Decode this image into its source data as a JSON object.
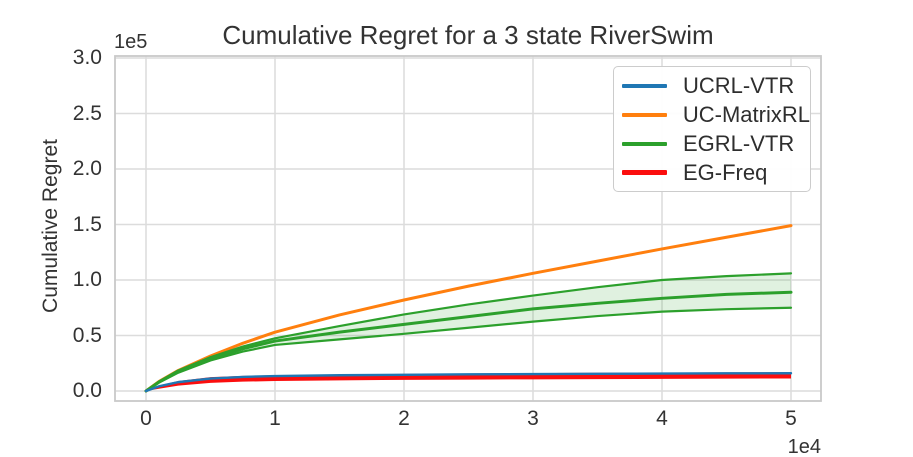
{
  "figure": {
    "title": "Cumulative Regret for a 3 state RiverSwim",
    "ylabel": "Cumulative Regret",
    "y_offset_label": "1e5",
    "x_offset_label": "1e4",
    "x_tick_labels": [
      "0",
      "1",
      "2",
      "3",
      "4",
      "5"
    ],
    "y_tick_labels": [
      "0.0",
      "0.5",
      "1.0",
      "1.5",
      "2.0",
      "2.5",
      "3.0"
    ],
    "text_color": "#333333",
    "grid_color": "#dcdcdc",
    "spine_color": "#c9c9c9",
    "background_color": "#ffffff"
  },
  "chart_data": {
    "type": "line",
    "title": "Cumulative Regret for a 3 state RiverSwim",
    "xlabel": "",
    "ylabel": "Cumulative Regret",
    "axis_offsets": {
      "x": "1e4",
      "y": "1e5"
    },
    "xlim": [
      -2500,
      52500
    ],
    "ylim": [
      -10000,
      305000
    ],
    "x_ticks": [
      0,
      10000,
      20000,
      30000,
      40000,
      50000
    ],
    "y_ticks": [
      0,
      50000,
      100000,
      150000,
      200000,
      250000,
      300000
    ],
    "grid": true,
    "legend_position": "upper right",
    "draw_order": [
      "UC-MatrixRL",
      "EGRL-VTR",
      "EG-Freq",
      "UCRL-VTR"
    ],
    "x": [
      0,
      1000,
      2500,
      5000,
      7500,
      10000,
      15000,
      20000,
      25000,
      30000,
      35000,
      40000,
      45000,
      50000
    ],
    "series": [
      {
        "name": "UCRL-VTR",
        "color": "#1f77b4",
        "line_width": 2.4,
        "legend_lw": 4,
        "values": [
          0,
          4200,
          8000,
          11200,
          12700,
          13500,
          14200,
          14600,
          15000,
          15300,
          15500,
          15700,
          15900,
          16000
        ]
      },
      {
        "name": "UC-MatrixRL",
        "color": "#ff7f0e",
        "line_width": 3,
        "legend_lw": 4,
        "values": [
          0,
          8500,
          18500,
          31500,
          43000,
          53000,
          68500,
          82000,
          94500,
          106000,
          117000,
          128000,
          138500,
          149000
        ]
      },
      {
        "name": "EGRL-VTR",
        "color": "#2ca02c",
        "line_width": 3,
        "legend_lw": 4,
        "band_opacity": 0.15,
        "band_edge_width": 2.2,
        "values": [
          0,
          8000,
          17500,
          29000,
          38000,
          45000,
          53000,
          60000,
          67000,
          74000,
          79000,
          83500,
          87000,
          89000
        ],
        "band_high": [
          0,
          8500,
          18500,
          30500,
          40000,
          47500,
          58500,
          69000,
          78000,
          86000,
          93500,
          100000,
          103500,
          106000
        ],
        "band_low": [
          0,
          7500,
          16500,
          27500,
          35500,
          41500,
          46500,
          51500,
          57000,
          62500,
          67500,
          71500,
          73700,
          75000
        ]
      },
      {
        "name": "EG-Freq",
        "color": "#fb0e0e",
        "line_width": 0,
        "legend_lw": 5,
        "band_opacity": 1,
        "band_edge_width": 0,
        "values": [
          0,
          3500,
          6600,
          9500,
          10600,
          11100,
          11700,
          12000,
          12400,
          12700,
          13000,
          13300,
          13600,
          13800
        ],
        "band_high": [
          0,
          5000,
          9000,
          12500,
          13600,
          14200,
          14900,
          15400,
          15800,
          16100,
          16400,
          16600,
          16800,
          17000
        ],
        "band_low": [
          0,
          2000,
          4800,
          7300,
          8400,
          9000,
          9600,
          10000,
          10300,
          10500,
          10700,
          10900,
          11100,
          11300
        ]
      }
    ]
  }
}
